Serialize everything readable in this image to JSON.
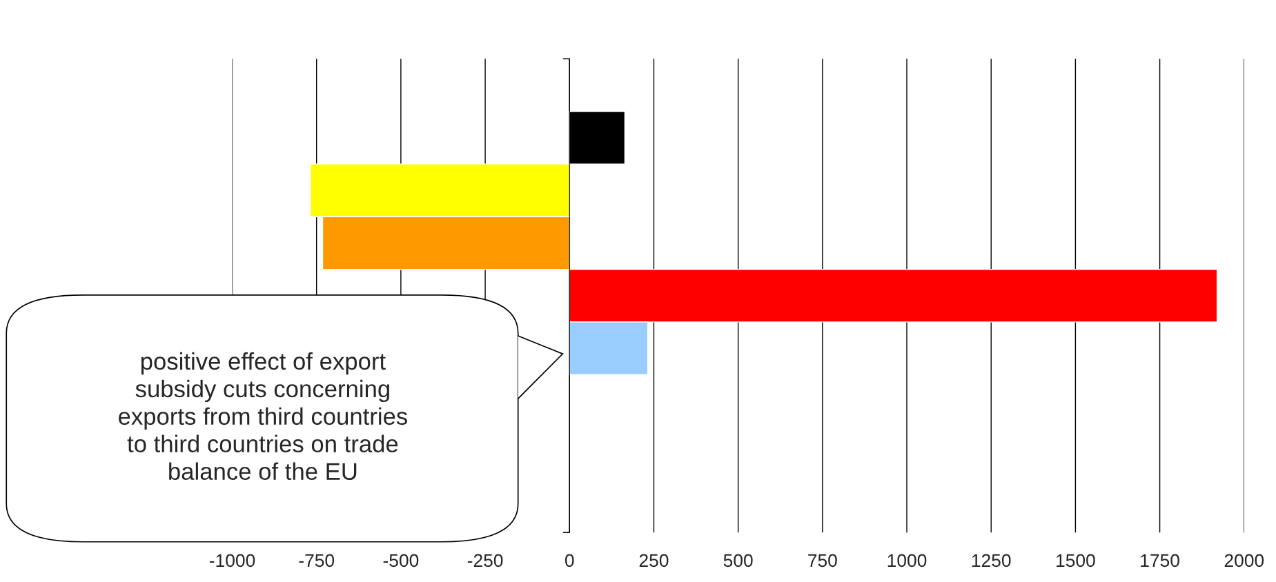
{
  "chart_data": {
    "type": "bar",
    "orientation": "horizontal",
    "categories": [
      null,
      null,
      null,
      null,
      null,
      null,
      null,
      null,
      null
    ],
    "values": [
      null,
      164,
      -768,
      -732,
      1920,
      232,
      null,
      null,
      null
    ],
    "colors": [
      "#000000",
      "#000000",
      "#ffff00",
      "#ff9900",
      "#ff0000",
      "#99ccff",
      "#000000",
      "#000000",
      "#000000"
    ],
    "xlim": [
      -1000,
      2000
    ],
    "xticks": [
      -1000,
      -750,
      -500,
      -250,
      0,
      250,
      500,
      750,
      1000,
      1250,
      1500,
      1750,
      2000
    ],
    "grid": "x",
    "legend": false,
    "annotations": [
      "positive effect of export\nsubsidy cuts concerning\nexports from third countries\nto third countries on trade\nbalance of the EU"
    ]
  }
}
